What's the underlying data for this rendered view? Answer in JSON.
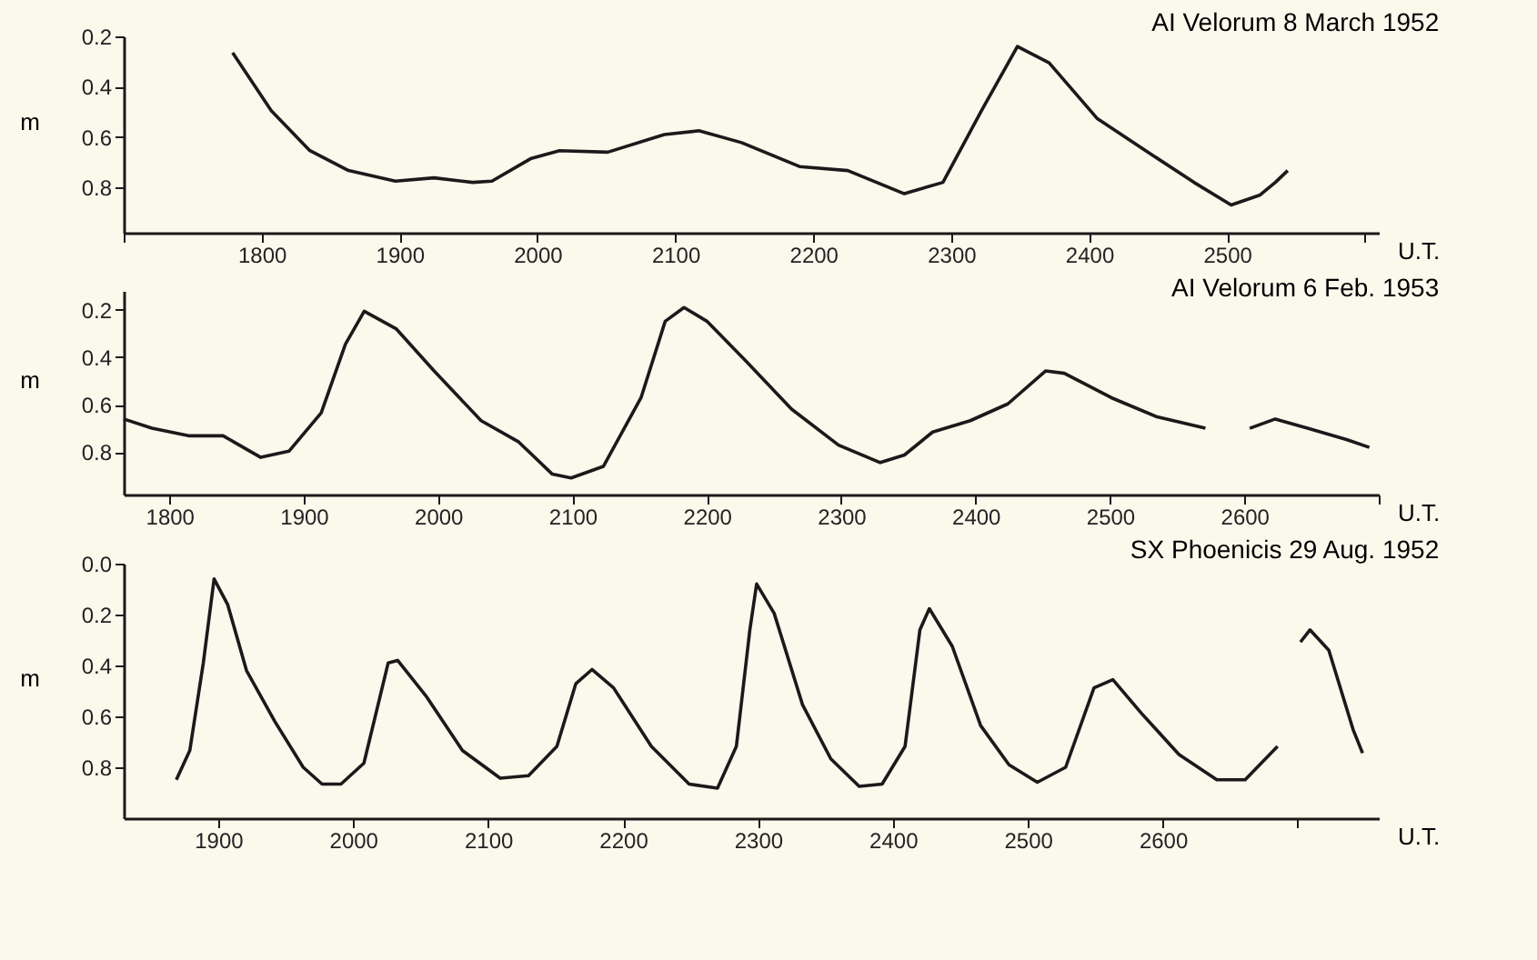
{
  "chart_data": [
    {
      "type": "line",
      "title": "AI Velorum 8 March 1952",
      "xlabel": "U.T.",
      "ylabel": "m",
      "xlim": [
        1700,
        2610
      ],
      "ylim": [
        0.98,
        0.2
      ],
      "xticks": [
        {
          "value": 1700,
          "label": null
        },
        1800,
        1900,
        2000,
        2100,
        2200,
        2300,
        2400,
        2500,
        {
          "value": 2600,
          "label": null
        }
      ],
      "yticks": [
        0.2,
        0.4,
        0.6,
        0.8
      ],
      "grid": false,
      "series": [
        {
          "color": "#1a1a1a",
          "x": [
            1779,
            1807,
            1835,
            1863,
            1897,
            1925,
            1953,
            1967,
            1995,
            2016,
            2051,
            2092,
            2117,
            2148,
            2190,
            2225,
            2266,
            2294,
            2322,
            2348,
            2371,
            2406,
            2441,
            2476,
            2503,
            2524,
            2535,
            2544
          ],
          "values": [
            0.265,
            0.495,
            0.654,
            0.733,
            0.775,
            0.762,
            0.78,
            0.775,
            0.686,
            0.654,
            0.66,
            0.59,
            0.575,
            0.622,
            0.717,
            0.733,
            0.825,
            0.78,
            0.495,
            0.24,
            0.305,
            0.527,
            0.654,
            0.78,
            0.87,
            0.83,
            0.78,
            0.733
          ]
        }
      ]
    },
    {
      "type": "line",
      "title": "AI Velorum 6 Feb. 1953",
      "xlabel": "U.T.",
      "ylabel": "m",
      "xlim": [
        1766,
        2700
      ],
      "ylim": [
        0.98,
        0.12
      ],
      "xticks": [
        1800,
        1900,
        2000,
        2100,
        2200,
        2300,
        2400,
        2500,
        2600,
        {
          "value": 2700,
          "label": null
        }
      ],
      "yticks": [
        0.2,
        0.4,
        0.6,
        0.8
      ],
      "grid": false,
      "series": [
        {
          "color": "#1a1a1a",
          "x": [
            1766,
            1787,
            1815,
            1840,
            1868,
            1889,
            1913,
            1931,
            1945,
            1969,
            1997,
            2032,
            2060,
            2085,
            2099,
            2123,
            2151,
            2169,
            2183,
            2200,
            2228,
            2263,
            2298,
            2329,
            2347,
            2368,
            2396,
            2424,
            2452,
            2466,
            2501,
            2535,
            2571,
            2588,
            2604,
            2623,
            2647,
            2676,
            2693
          ],
          "values": [
            0.661,
            0.7,
            0.732,
            0.732,
            0.823,
            0.797,
            0.635,
            0.345,
            0.206,
            0.281,
            0.458,
            0.668,
            0.758,
            0.894,
            0.91,
            0.861,
            0.571,
            0.248,
            0.19,
            0.248,
            0.41,
            0.619,
            0.771,
            0.845,
            0.813,
            0.716,
            0.668,
            0.597,
            0.458,
            0.468,
            0.571,
            0.652,
            0.7,
            null,
            0.7,
            0.661,
            0.7,
            0.748,
            0.781
          ]
        }
      ]
    },
    {
      "type": "line",
      "title": "SX Phoenicis 29 Aug. 1952",
      "xlabel": "U.T.",
      "ylabel": "m",
      "xlim": [
        1830,
        2760
      ],
      "ylim": [
        1.0,
        0.0
      ],
      "xticks": [
        1900,
        2000,
        2100,
        2200,
        2300,
        2400,
        2500,
        2600,
        {
          "value": 2700,
          "label": null
        }
      ],
      "yticks": [
        {
          "value": 0,
          "label": "0.0"
        },
        0.2,
        0.4,
        0.6,
        0.8
      ],
      "grid": false,
      "series": [
        {
          "color": "#1a1a1a",
          "x": [
            1869,
            1879,
            1889,
            1897,
            1907,
            1921,
            1942,
            1963,
            1977,
            1991,
            2008,
            2026,
            2033,
            2054,
            2081,
            2109,
            2130,
            2151,
            2165,
            2177,
            2193,
            2221,
            2249,
            2270,
            2284,
            2294,
            2299,
            2312,
            2333,
            2354,
            2375,
            2392,
            2409,
            2420,
            2427,
            2444,
            2465,
            2486,
            2507,
            2528,
            2549,
            2563,
            2584,
            2612,
            2640,
            2661,
            2685,
            2693,
            2702,
            2709,
            2723,
            2741,
            2748
          ],
          "values": [
            0.849,
            0.734,
            0.39,
            0.06,
            0.16,
            0.42,
            0.62,
            0.8,
            0.866,
            0.866,
            0.784,
            0.39,
            0.38,
            0.52,
            0.734,
            0.843,
            0.833,
            0.718,
            0.472,
            0.416,
            0.488,
            0.718,
            0.866,
            0.882,
            0.718,
            0.26,
            0.08,
            0.195,
            0.554,
            0.767,
            0.875,
            0.866,
            0.718,
            0.26,
            0.177,
            0.325,
            0.636,
            0.79,
            0.859,
            0.8,
            0.488,
            0.456,
            0.587,
            0.75,
            0.849,
            0.849,
            0.718,
            null,
            0.308,
            0.26,
            0.34,
            0.652,
            0.744
          ]
        }
      ]
    }
  ]
}
